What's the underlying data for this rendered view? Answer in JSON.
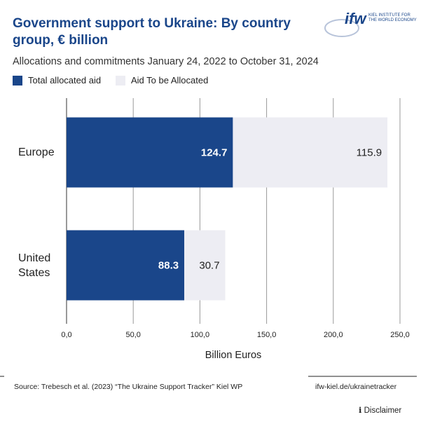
{
  "chart_data": {
    "type": "stacked_barh",
    "title": "Government support to Ukraine: By country group, € billion",
    "subtitle": "Allocations and commitments January 24, 2022 to October 31, 2024",
    "x_axis_label": "Billion Euros",
    "categories": [
      "Europe",
      "United States"
    ],
    "series": [
      {
        "name": "Total allocated aid",
        "color": "#1a468a",
        "values": [
          124.7,
          88.3
        ]
      },
      {
        "name": "Aid To be Allocated",
        "color": "#ededf3",
        "values": [
          115.9,
          30.7
        ]
      }
    ],
    "xlim": [
      0,
      250
    ],
    "xticks": [
      {
        "value": 0,
        "label": "0,0"
      },
      {
        "value": 50,
        "label": "50,0"
      },
      {
        "value": 100,
        "label": "100,0"
      },
      {
        "value": 150,
        "label": "150,0"
      },
      {
        "value": 200,
        "label": "200,0"
      },
      {
        "value": 250,
        "label": "250,0"
      }
    ],
    "grid": true
  },
  "logo": {
    "mark": "ifw",
    "text": "KIEL INSTITUTE FOR THE WORLD ECONOMY"
  },
  "footer": {
    "source": "Source: Trebesch et al. (2023) “The Ukraine Support Tracker” Kiel WP",
    "url": "ifw-kiel.de/ukrainetracker",
    "disclaimer": "Disclaimer"
  }
}
